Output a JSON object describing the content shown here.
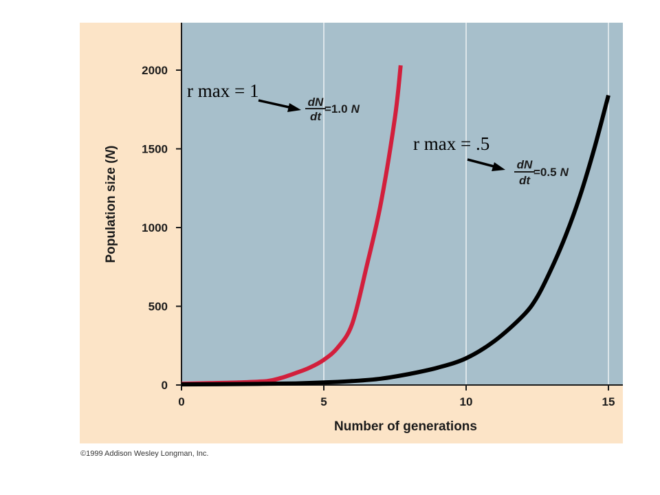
{
  "chart_data": {
    "type": "line",
    "title": "",
    "xlabel": "Number of generations",
    "ylabel": "Population size (N)",
    "ylabel_parts": {
      "before": "Population size (",
      "var": "N",
      "after": ")"
    },
    "xlim": [
      0,
      15.5
    ],
    "ylim": [
      0,
      2300
    ],
    "xticks": [
      0,
      5,
      10,
      15
    ],
    "yticks": [
      0,
      500,
      1000,
      1500,
      2000
    ],
    "grid": true,
    "series": [
      {
        "color": "#d21f3c",
        "x": [
          0,
          1,
          2,
          3,
          3.5,
          4,
          4.5,
          5,
          5.5,
          6,
          6.5,
          7,
          7.5,
          7.7
        ],
        "y": [
          8,
          12,
          16,
          25,
          45,
          75,
          110,
          160,
          240,
          390,
          750,
          1150,
          1700,
          2030
        ]
      },
      {
        "color": "#000000",
        "x": [
          0,
          2,
          4,
          5,
          6,
          7,
          8,
          9,
          10,
          11,
          12,
          12.5,
          13,
          13.5,
          14,
          14.5,
          15
        ],
        "y": [
          4,
          6,
          10,
          16,
          25,
          40,
          70,
          110,
          170,
          280,
          440,
          560,
          740,
          950,
          1200,
          1500,
          1840
        ]
      }
    ],
    "annotations": [
      {
        "label": "r max = 1",
        "dn": "dN",
        "dt": "dt",
        "eq_value": "=1.0",
        "eq_var": "N"
      },
      {
        "label": "r max = .5",
        "dn": "dN",
        "dt": "dt",
        "eq_value": "=0.5",
        "eq_var": "N"
      }
    ]
  },
  "colors": {
    "plot_bg": "#a7bfcb",
    "outer_bg": "#fce4c7",
    "grid": "#ffffff"
  },
  "copyright": "©1999 Addison Wesley Longman, Inc."
}
